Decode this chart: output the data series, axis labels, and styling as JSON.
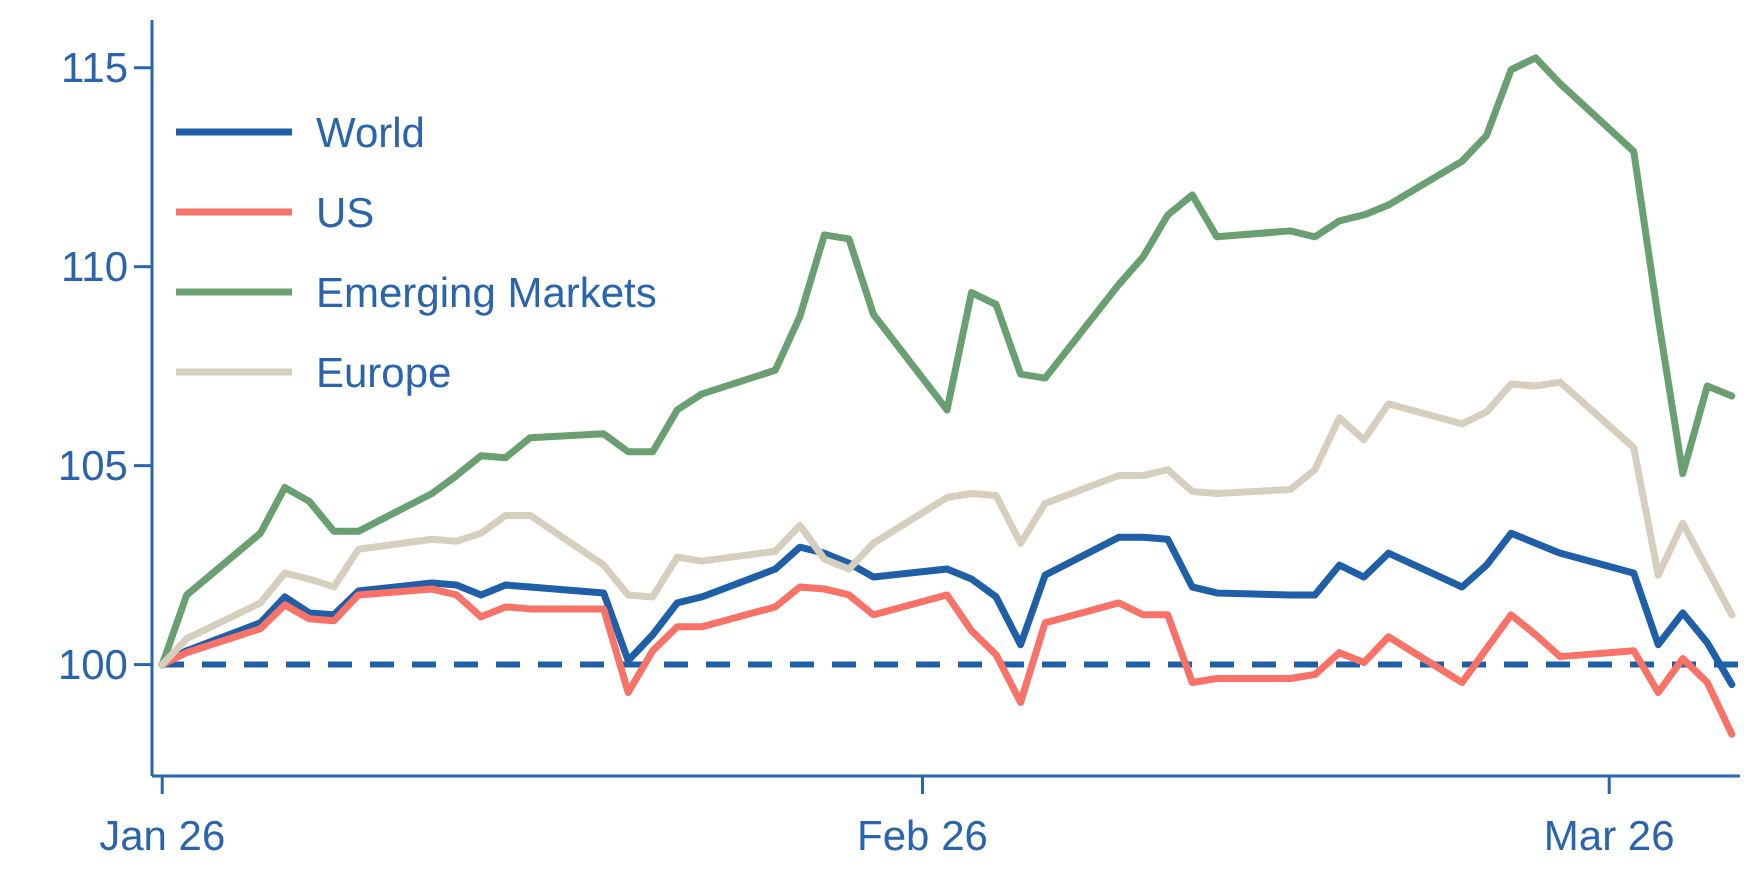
{
  "chart_data": {
    "type": "line",
    "x": [
      "2026-01-01",
      "2026-01-02",
      "2026-01-05",
      "2026-01-06",
      "2026-01-07",
      "2026-01-08",
      "2026-01-09",
      "2026-01-12",
      "2026-01-13",
      "2026-01-14",
      "2026-01-15",
      "2026-01-16",
      "2026-01-19",
      "2026-01-20",
      "2026-01-21",
      "2026-01-22",
      "2026-01-23",
      "2026-01-26",
      "2026-01-27",
      "2026-01-28",
      "2026-01-29",
      "2026-01-30",
      "2026-02-02",
      "2026-02-03",
      "2026-02-04",
      "2026-02-05",
      "2026-02-06",
      "2026-02-09",
      "2026-02-10",
      "2026-02-11",
      "2026-02-12",
      "2026-02-13",
      "2026-02-16",
      "2026-02-17",
      "2026-02-18",
      "2026-02-19",
      "2026-02-20",
      "2026-02-23",
      "2026-02-24",
      "2026-02-25",
      "2026-02-26",
      "2026-02-27",
      "2026-03-02",
      "2026-03-03",
      "2026-03-04",
      "2026-03-05",
      "2026-03-06"
    ],
    "series": [
      {
        "name": "World",
        "color": "#1f5fa8",
        "values": [
          100,
          100.35,
          101.05,
          101.7,
          101.3,
          101.25,
          101.85,
          102.05,
          102.0,
          101.75,
          102.0,
          101.95,
          101.8,
          100.1,
          100.75,
          101.55,
          101.7,
          102.4,
          102.95,
          102.8,
          102.55,
          102.2,
          102.4,
          102.15,
          101.7,
          100.5,
          102.25,
          103.2,
          103.2,
          103.15,
          101.95,
          101.8,
          101.75,
          101.75,
          102.5,
          102.2,
          102.8,
          101.95,
          102.5,
          103.3,
          103.05,
          102.8,
          102.3,
          100.5,
          101.3,
          100.55,
          99.5
        ]
      },
      {
        "name": "US",
        "color": "#f87268",
        "values": [
          100,
          100.3,
          100.9,
          101.5,
          101.15,
          101.1,
          101.75,
          101.9,
          101.75,
          101.2,
          101.45,
          101.4,
          101.4,
          99.3,
          100.35,
          100.95,
          100.95,
          101.45,
          101.95,
          101.9,
          101.75,
          101.25,
          101.75,
          100.85,
          100.25,
          99.05,
          101.05,
          101.55,
          101.25,
          101.25,
          99.55,
          99.65,
          99.65,
          99.75,
          100.3,
          100.05,
          100.7,
          99.55,
          100.4,
          101.25,
          100.75,
          100.2,
          100.35,
          99.3,
          100.15,
          99.55,
          98.25
        ]
      },
      {
        "name": "Emerging Markets",
        "color": "#6a9f72",
        "values": [
          100,
          101.75,
          103.3,
          104.45,
          104.1,
          103.35,
          103.35,
          104.3,
          104.75,
          105.25,
          105.2,
          105.7,
          105.8,
          105.35,
          105.35,
          106.4,
          106.8,
          107.4,
          108.75,
          110.8,
          110.7,
          108.8,
          106.4,
          109.35,
          109.05,
          107.3,
          107.2,
          109.55,
          110.25,
          111.3,
          111.8,
          110.75,
          110.9,
          110.75,
          111.15,
          111.3,
          111.55,
          112.65,
          113.3,
          114.95,
          115.25,
          114.6,
          112.9,
          108.7,
          104.8,
          107.0,
          106.75
        ]
      },
      {
        "name": "Europe",
        "color": "#d6cfbd",
        "values": [
          100,
          100.65,
          101.55,
          102.3,
          102.15,
          101.95,
          102.9,
          103.15,
          103.1,
          103.3,
          103.75,
          103.75,
          102.5,
          101.75,
          101.7,
          102.7,
          102.6,
          102.85,
          103.5,
          102.65,
          102.4,
          103.05,
          104.2,
          104.3,
          104.25,
          103.05,
          104.05,
          104.75,
          104.75,
          104.9,
          104.35,
          104.3,
          104.4,
          104.9,
          106.2,
          105.65,
          106.55,
          106.05,
          106.35,
          107.05,
          107.0,
          107.1,
          105.45,
          102.25,
          103.55,
          102.4,
          101.25
        ]
      }
    ],
    "xlim": [
      "2025-12-31T14:00",
      "2026-03-06T08:00"
    ],
    "xticks": [
      {
        "value": "2026-01-01",
        "label": "Jan 26"
      },
      {
        "value": "2026-02-01",
        "label": "Feb 26"
      },
      {
        "value": "2026-03-01",
        "label": "Mar 26"
      }
    ],
    "ylim": [
      97.2,
      116.2
    ],
    "yticks": [
      100,
      105,
      110,
      115
    ],
    "ref_lines": [
      {
        "axis": "y",
        "value": 100,
        "color": "#1f5fa8",
        "line_style": "dashed"
      }
    ],
    "legend": "top left",
    "grid": false,
    "line_style": "solid",
    "marker": "none"
  }
}
